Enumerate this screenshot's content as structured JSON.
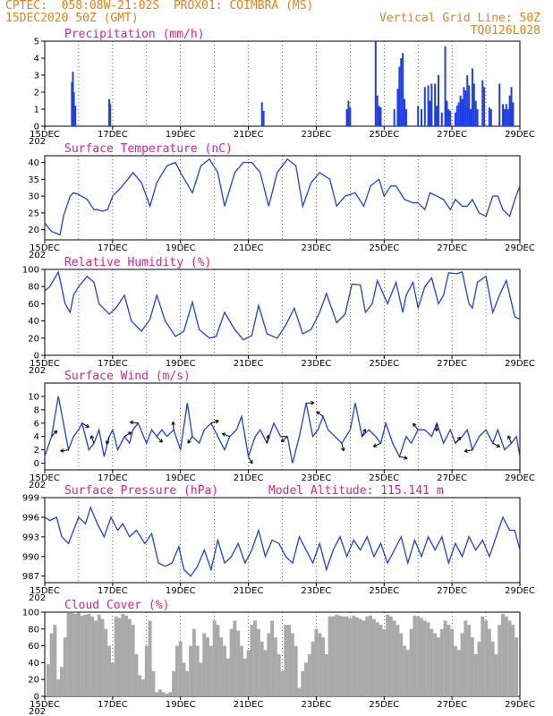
{
  "header": {
    "line1_left": "CPTEC:  058:08W-21:02S  PROX01: COIMBRA (MS)",
    "line2_left": "15DEC2020 50Z (GMT)",
    "line2_right": "Vertical Grid Line: 50Z",
    "line3_right": "TQ0126L028"
  },
  "colors": {
    "series": "#1f3fe6",
    "title": "#e0208a",
    "header": "#e8801c",
    "cloud": "#a9a9a9"
  },
  "x_ticks": [
    "15DEC",
    "17DEC",
    "19DEC",
    "21DEC",
    "23DEC",
    "25DEC",
    "27DEC",
    "29DEC"
  ],
  "x_tick_sub": "202",
  "chart_data": [
    {
      "type": "bar",
      "title": "Precipitation (mm/h)",
      "ylim": [
        0,
        5
      ],
      "yticks": [
        "0",
        "1",
        "2",
        "3",
        "4",
        "5"
      ],
      "x_unit": "days since 15DEC",
      "bars": [
        [
          0.8,
          2.6
        ],
        [
          0.83,
          3.2
        ],
        [
          0.86,
          2.0
        ],
        [
          0.9,
          1.2
        ],
        [
          1.9,
          1.6
        ],
        [
          1.93,
          1.3
        ],
        [
          6.4,
          1.4
        ],
        [
          6.45,
          0.9
        ],
        [
          8.9,
          1.0
        ],
        [
          8.95,
          1.5
        ],
        [
          9.0,
          1.1
        ],
        [
          9.75,
          5.0
        ],
        [
          9.8,
          1.8
        ],
        [
          9.85,
          1.2
        ],
        [
          9.9,
          1.1
        ],
        [
          10.3,
          1.0
        ],
        [
          10.4,
          2.2
        ],
        [
          10.45,
          3.5
        ],
        [
          10.5,
          4.0
        ],
        [
          10.55,
          4.3
        ],
        [
          10.6,
          1.6
        ],
        [
          10.65,
          1.0
        ],
        [
          11.0,
          1.2
        ],
        [
          11.1,
          1.0
        ],
        [
          11.2,
          2.3
        ],
        [
          11.3,
          2.4
        ],
        [
          11.35,
          1.5
        ],
        [
          11.4,
          2.5
        ],
        [
          11.5,
          2.5
        ],
        [
          11.55,
          1.2
        ],
        [
          11.6,
          3.0
        ],
        [
          11.7,
          0.8
        ],
        [
          11.8,
          4.7
        ],
        [
          11.85,
          1.5
        ],
        [
          11.9,
          1.0
        ],
        [
          11.95,
          0.9
        ],
        [
          12.1,
          0.8
        ],
        [
          12.15,
          1.2
        ],
        [
          12.2,
          1.4
        ],
        [
          12.25,
          1.8
        ],
        [
          12.3,
          1.6
        ],
        [
          12.35,
          2.3
        ],
        [
          12.4,
          2.1
        ],
        [
          12.45,
          3.0
        ],
        [
          12.5,
          2.4
        ],
        [
          12.55,
          1.0
        ],
        [
          12.6,
          3.4
        ],
        [
          12.65,
          2.5
        ],
        [
          12.7,
          1.5
        ],
        [
          12.75,
          1.0
        ],
        [
          12.9,
          2.7
        ],
        [
          12.95,
          2.3
        ],
        [
          13.1,
          1.1
        ],
        [
          13.15,
          1.0
        ],
        [
          13.4,
          2.5
        ],
        [
          13.5,
          1.3
        ],
        [
          13.55,
          1.0
        ],
        [
          13.6,
          1.3
        ],
        [
          13.65,
          1.0
        ],
        [
          13.7,
          1.8
        ],
        [
          13.75,
          2.3
        ],
        [
          13.8,
          1.4
        ]
      ]
    },
    {
      "type": "line",
      "title": "Surface Temperature (nC)",
      "ylim": [
        17,
        42
      ],
      "yticks": [
        "20",
        "25",
        "30",
        "35",
        "40"
      ],
      "x_unit": "days since 15DEC",
      "x": [
        0,
        0.2,
        0.45,
        0.55,
        0.75,
        0.85,
        1.0,
        1.25,
        1.45,
        1.55,
        1.7,
        1.85,
        2.0,
        2.2,
        2.45,
        2.6,
        2.85,
        3.1,
        3.3,
        3.6,
        3.85,
        4.0,
        4.35,
        4.6,
        4.85,
        5.1,
        5.3,
        5.6,
        5.85,
        6.1,
        6.35,
        6.6,
        6.85,
        7.15,
        7.4,
        7.6,
        7.85,
        8.1,
        8.4,
        8.6,
        8.85,
        9.15,
        9.4,
        9.6,
        9.85,
        10.0,
        10.2,
        10.35,
        10.6,
        10.85,
        11.0,
        11.2,
        11.35,
        11.55,
        11.75,
        11.95,
        12.1,
        12.3,
        12.45,
        12.6,
        12.8,
        13.0,
        13.2,
        13.35,
        13.5,
        13.7,
        13.85,
        14.0
      ],
      "y": [
        22,
        19.5,
        18.5,
        24,
        30,
        31,
        30.5,
        29,
        26,
        26,
        25.5,
        26,
        30,
        32,
        35,
        37,
        34,
        27,
        34,
        39,
        40,
        37,
        31,
        39,
        41,
        37,
        27,
        37,
        40,
        40,
        37,
        27,
        37,
        41,
        39,
        27,
        34,
        37,
        35,
        27,
        30,
        31,
        27,
        33,
        35,
        30,
        33,
        33,
        29,
        28,
        28,
        26,
        31,
        30,
        29,
        26,
        29,
        27,
        27,
        29,
        25,
        24,
        30,
        30,
        26,
        24,
        29,
        33
      ]
    },
    {
      "type": "line",
      "title": "Relative Humidity (%)",
      "ylim": [
        0,
        100
      ],
      "yticks": [
        "0",
        "20",
        "40",
        "60",
        "80",
        "100"
      ],
      "x_unit": "days since 15DEC",
      "x": [
        0,
        0.15,
        0.4,
        0.6,
        0.75,
        0.85,
        1.0,
        1.25,
        1.45,
        1.6,
        1.9,
        2.1,
        2.35,
        2.55,
        2.85,
        3.1,
        3.3,
        3.55,
        3.85,
        4.1,
        4.35,
        4.55,
        4.85,
        5.05,
        5.3,
        5.6,
        5.85,
        6.1,
        6.3,
        6.55,
        6.85,
        7.1,
        7.35,
        7.6,
        7.85,
        8.1,
        8.3,
        8.6,
        8.85,
        9.05,
        9.3,
        9.45,
        9.65,
        9.8,
        10.1,
        10.35,
        10.55,
        10.65,
        10.85,
        11.0,
        11.2,
        11.4,
        11.6,
        11.75,
        11.9,
        12.15,
        12.3,
        12.5,
        12.6,
        12.75,
        13.0,
        13.2,
        13.4,
        13.6,
        13.85,
        14.0
      ],
      "y": [
        75,
        80,
        97,
        60,
        50,
        70,
        80,
        92,
        85,
        60,
        48,
        55,
        70,
        40,
        28,
        42,
        70,
        40,
        22,
        28,
        62,
        30,
        20,
        22,
        50,
        30,
        18,
        23,
        58,
        25,
        20,
        35,
        55,
        25,
        30,
        50,
        72,
        38,
        48,
        83,
        82,
        50,
        60,
        87,
        60,
        85,
        50,
        70,
        85,
        55,
        80,
        90,
        60,
        70,
        96,
        95,
        97,
        60,
        55,
        85,
        92,
        50,
        70,
        87,
        45,
        42
      ]
    },
    {
      "type": "line",
      "title": "Surface Wind (m/s)",
      "ylim": [
        -1,
        12
      ],
      "yticks": [
        "0",
        "2",
        "4",
        "6",
        "8",
        "10"
      ],
      "x_unit": "days since 15DEC",
      "x": [
        0,
        0.2,
        0.4,
        0.55,
        0.7,
        0.85,
        1.0,
        1.1,
        1.2,
        1.3,
        1.45,
        1.6,
        1.75,
        1.9,
        2.0,
        2.15,
        2.35,
        2.5,
        2.6,
        2.75,
        3.0,
        3.15,
        3.3,
        3.45,
        3.6,
        3.8,
        4.0,
        4.2,
        4.35,
        4.55,
        4.7,
        4.9,
        5.1,
        5.3,
        5.45,
        5.65,
        5.8,
        6.0,
        6.2,
        6.35,
        6.55,
        6.75,
        6.95,
        7.15,
        7.3,
        7.5,
        7.7,
        7.9,
        8.05,
        8.2,
        8.35,
        8.55,
        8.75,
        9.0,
        9.15,
        9.35,
        9.55,
        9.75,
        9.9,
        10.05,
        10.25,
        10.45,
        10.65,
        10.8,
        11.0,
        11.2,
        11.4,
        11.55,
        11.75,
        11.95,
        12.1,
        12.3,
        12.45,
        12.6,
        12.8,
        13.0,
        13.2,
        13.35,
        13.55,
        13.75,
        13.9,
        14.0
      ],
      "y": [
        1,
        4,
        10,
        6,
        2,
        4,
        5,
        6,
        4,
        2,
        3,
        5,
        1,
        4,
        5,
        2,
        4,
        3,
        5,
        6,
        3,
        5,
        4,
        5,
        4,
        5,
        2,
        9,
        4,
        3,
        5,
        6,
        4,
        2,
        4,
        5,
        7,
        1,
        4,
        5,
        3,
        6,
        4,
        4,
        0,
        4,
        9,
        4,
        5,
        7,
        5,
        4,
        3,
        5,
        9,
        4,
        5,
        4,
        3,
        6,
        3,
        1,
        4,
        3,
        5,
        5,
        4,
        6,
        3,
        5,
        3,
        4,
        5,
        2,
        4,
        5,
        3,
        5,
        2,
        3,
        4,
        1
      ]
    },
    {
      "type": "line",
      "title": "Surface Pressure (hPa)",
      "annotation": "Model Altitude: 115.141 m",
      "ylim": [
        986,
        999
      ],
      "yticks": [
        "987",
        "990",
        "993",
        "996",
        "999"
      ],
      "x_unit": "days since 15DEC",
      "x": [
        0,
        0.15,
        0.35,
        0.5,
        0.7,
        0.85,
        1.0,
        1.2,
        1.35,
        1.55,
        1.75,
        1.95,
        2.15,
        2.3,
        2.5,
        2.7,
        2.95,
        3.15,
        3.35,
        3.55,
        3.75,
        3.95,
        4.1,
        4.3,
        4.5,
        4.7,
        4.9,
        5.1,
        5.3,
        5.5,
        5.7,
        5.9,
        6.1,
        6.3,
        6.5,
        6.7,
        6.9,
        7.1,
        7.3,
        7.5,
        7.7,
        7.9,
        8.1,
        8.3,
        8.5,
        8.7,
        8.9,
        9.1,
        9.3,
        9.5,
        9.7,
        9.9,
        10.1,
        10.3,
        10.5,
        10.7,
        10.9,
        11.1,
        11.3,
        11.5,
        11.7,
        11.9,
        12.1,
        12.3,
        12.5,
        12.7,
        12.9,
        13.1,
        13.3,
        13.5,
        13.7,
        13.85,
        14.0
      ],
      "y": [
        996,
        995.5,
        996,
        993,
        992,
        994,
        996,
        995,
        997.5,
        995,
        993,
        996,
        994,
        995,
        993,
        994,
        992,
        993.5,
        989,
        988.5,
        989,
        991.5,
        988,
        987,
        988.5,
        991,
        988,
        992.5,
        989,
        990,
        992,
        989,
        991,
        994,
        990,
        992.5,
        992,
        990,
        989,
        993,
        991,
        989,
        992,
        988,
        991,
        993,
        990,
        992.5,
        991,
        993,
        990,
        992,
        989,
        991,
        993,
        989,
        992.5,
        990,
        993,
        991,
        993,
        989,
        992,
        990,
        993,
        991,
        992.5,
        990,
        993,
        996,
        994,
        994,
        991
      ]
    },
    {
      "type": "bar",
      "title": "Cloud Cover (%)",
      "ylim": [
        0,
        100
      ],
      "yticks": [
        "0",
        "20",
        "40",
        "60",
        "80",
        "100"
      ],
      "x_unit": "days since 15DEC",
      "bars": [
        [
          0.1,
          38
        ],
        [
          0.2,
          75
        ],
        [
          0.3,
          85
        ],
        [
          0.4,
          20
        ],
        [
          0.5,
          35
        ],
        [
          0.6,
          70
        ],
        [
          0.7,
          99
        ],
        [
          0.8,
          99
        ],
        [
          0.9,
          98
        ],
        [
          1.0,
          99
        ],
        [
          1.1,
          96
        ],
        [
          1.2,
          97
        ],
        [
          1.3,
          98
        ],
        [
          1.4,
          95
        ],
        [
          1.5,
          90
        ],
        [
          1.6,
          97
        ],
        [
          1.7,
          92
        ],
        [
          1.8,
          80
        ],
        [
          1.9,
          60
        ],
        [
          2.0,
          40
        ],
        [
          2.1,
          95
        ],
        [
          2.2,
          93
        ],
        [
          2.3,
          98
        ],
        [
          2.4,
          96
        ],
        [
          2.5,
          92
        ],
        [
          2.6,
          85
        ],
        [
          2.7,
          50
        ],
        [
          2.8,
          25
        ],
        [
          2.9,
          20
        ],
        [
          3.0,
          60
        ],
        [
          3.1,
          90
        ],
        [
          3.2,
          30
        ],
        [
          3.3,
          5
        ],
        [
          3.4,
          8
        ],
        [
          3.5,
          5
        ],
        [
          3.6,
          3
        ],
        [
          3.7,
          5
        ],
        [
          3.8,
          30
        ],
        [
          3.9,
          60
        ],
        [
          4.0,
          65
        ],
        [
          4.1,
          40
        ],
        [
          4.2,
          30
        ],
        [
          4.3,
          60
        ],
        [
          4.4,
          80
        ],
        [
          4.5,
          60
        ],
        [
          4.6,
          40
        ],
        [
          4.7,
          75
        ],
        [
          4.8,
          70
        ],
        [
          4.9,
          60
        ],
        [
          5.0,
          90
        ],
        [
          5.1,
          85
        ],
        [
          5.2,
          70
        ],
        [
          5.3,
          60
        ],
        [
          5.4,
          45
        ],
        [
          5.5,
          80
        ],
        [
          5.6,
          90
        ],
        [
          5.7,
          78
        ],
        [
          5.8,
          60
        ],
        [
          5.9,
          45
        ],
        [
          6.0,
          55
        ],
        [
          6.1,
          85
        ],
        [
          6.2,
          90
        ],
        [
          6.3,
          80
        ],
        [
          6.4,
          65
        ],
        [
          6.5,
          55
        ],
        [
          6.6,
          75
        ],
        [
          6.7,
          90
        ],
        [
          6.8,
          70
        ],
        [
          6.9,
          50
        ],
        [
          7.0,
          30
        ],
        [
          7.1,
          85
        ],
        [
          7.2,
          85
        ],
        [
          7.3,
          75
        ],
        [
          7.4,
          60
        ],
        [
          7.5,
          10
        ],
        [
          7.6,
          30
        ],
        [
          7.7,
          40
        ],
        [
          7.8,
          50
        ],
        [
          7.9,
          65
        ],
        [
          8.0,
          80
        ],
        [
          8.1,
          75
        ],
        [
          8.2,
          70
        ],
        [
          8.3,
          50
        ],
        [
          8.4,
          95
        ],
        [
          8.5,
          95
        ],
        [
          8.6,
          97
        ],
        [
          8.7,
          96
        ],
        [
          8.8,
          95
        ],
        [
          8.9,
          95
        ],
        [
          9.0,
          93
        ],
        [
          9.1,
          96
        ],
        [
          9.2,
          94
        ],
        [
          9.3,
          92
        ],
        [
          9.4,
          90
        ],
        [
          9.5,
          95
        ],
        [
          9.6,
          96
        ],
        [
          9.7,
          92
        ],
        [
          9.8,
          88
        ],
        [
          9.9,
          85
        ],
        [
          10.0,
          80
        ],
        [
          10.1,
          97
        ],
        [
          10.2,
          95
        ],
        [
          10.3,
          90
        ],
        [
          10.4,
          85
        ],
        [
          10.5,
          75
        ],
        [
          10.6,
          60
        ],
        [
          10.7,
          55
        ],
        [
          10.8,
          80
        ],
        [
          10.9,
          96
        ],
        [
          11.0,
          95
        ],
        [
          11.1,
          93
        ],
        [
          11.2,
          90
        ],
        [
          11.3,
          88
        ],
        [
          11.4,
          80
        ],
        [
          11.5,
          75
        ],
        [
          11.6,
          70
        ],
        [
          11.7,
          80
        ],
        [
          11.8,
          90
        ],
        [
          11.9,
          85
        ],
        [
          12.0,
          80
        ],
        [
          12.1,
          60
        ],
        [
          12.2,
          55
        ],
        [
          12.3,
          75
        ],
        [
          12.4,
          90
        ],
        [
          12.5,
          85
        ],
        [
          12.6,
          70
        ],
        [
          12.7,
          50
        ],
        [
          12.8,
          65
        ],
        [
          12.9,
          95
        ],
        [
          13.0,
          90
        ],
        [
          13.1,
          80
        ],
        [
          13.2,
          65
        ],
        [
          13.3,
          50
        ],
        [
          13.4,
          85
        ],
        [
          13.5,
          98
        ],
        [
          13.6,
          95
        ],
        [
          13.7,
          90
        ],
        [
          13.8,
          85
        ],
        [
          13.9,
          70
        ]
      ]
    }
  ]
}
